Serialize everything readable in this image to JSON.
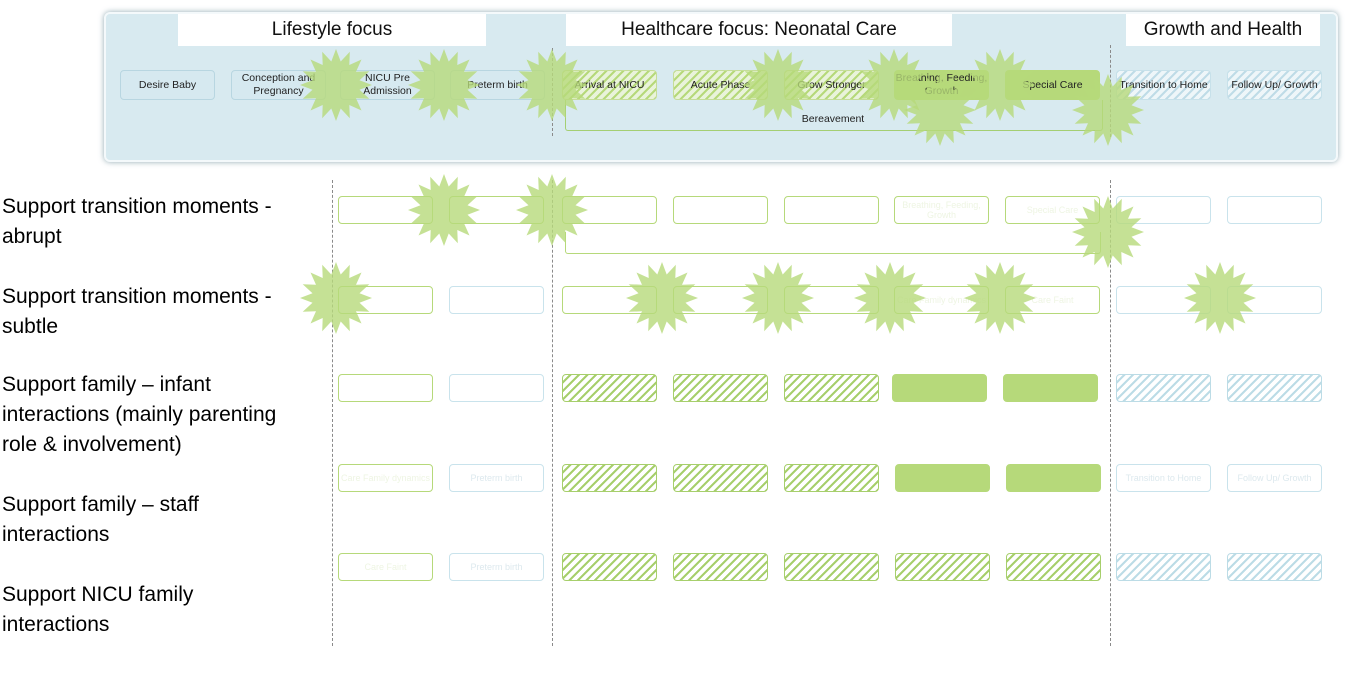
{
  "headers": {
    "lifestyle": "Lifestyle focus",
    "healthcare": "Healthcare focus: Neonatal Care",
    "growth": "Growth and Health"
  },
  "stages": [
    {
      "label": "Desire Baby"
    },
    {
      "label": "Conception and Pregnancy"
    },
    {
      "label": "NICU Pre Admission"
    },
    {
      "label": "Preterm birth"
    },
    {
      "label": "Arrival at NICU"
    },
    {
      "label": "Acute Phase"
    },
    {
      "label": "Grow Stronger"
    },
    {
      "label": "Breathing, Feeding, Growth"
    },
    {
      "label": "Special Care"
    },
    {
      "label": "Transition to Home"
    },
    {
      "label": "Follow Up/ Growth"
    }
  ],
  "bereavement_label": "Bereavement",
  "rows": [
    {
      "label": "Support transition moments - abrupt"
    },
    {
      "label": "Support transition moments - subtle"
    },
    {
      "label": "Support family – infant interactions (mainly parenting role & involvement)"
    },
    {
      "label": "Support family – staff interactions"
    },
    {
      "label": "Support NICU family interactions"
    }
  ],
  "ghost_text": {
    "breathing": "Breathing, Feeding, Growth",
    "special": "Special Care",
    "care_ish": "Care Family dynamics",
    "preterm": "Preterm birth",
    "transition": "Transition to Home",
    "follow": "Follow Up/ Growth",
    "care_faint": "Care Faint"
  },
  "colors": {
    "panel": "#d8eaf0",
    "green": "#b6d97a",
    "blue_outline": "#c9e3ec",
    "star": "#b6d97a"
  }
}
